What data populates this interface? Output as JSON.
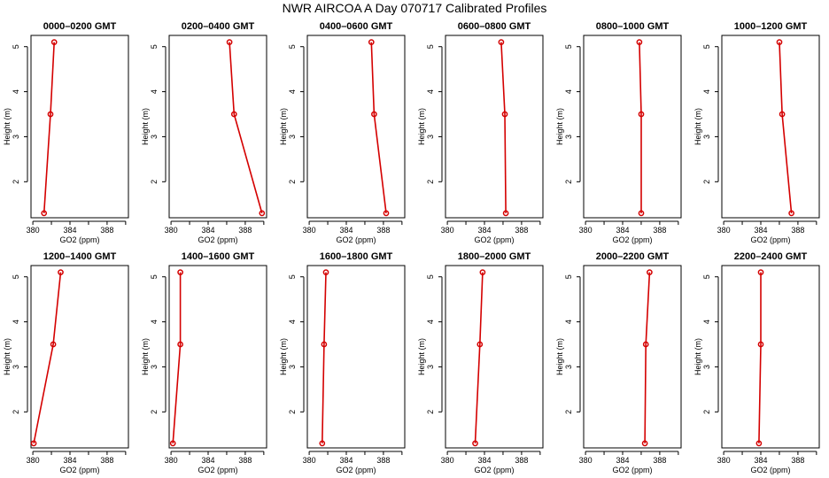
{
  "figure": {
    "title": "NWR AIRCOA A  Day 070717  Calibrated Profiles"
  },
  "chart_data": {
    "type": "line",
    "title": "NWR AIRCOA A  Day 070717  Calibrated Profiles",
    "xlabel": "GO2 (ppm)",
    "ylabel": "Height (m)",
    "xlim": [
      379.8,
      390.3
    ],
    "ylim": [
      1.2,
      5.25
    ],
    "x_ticks": [
      380,
      384,
      388
    ],
    "y_ticks": [
      2,
      3,
      4,
      5
    ],
    "colors": {
      "line": "#d40000",
      "point": "#d40000"
    },
    "heights": [
      1.3,
      3.5,
      5.1
    ],
    "panels": [
      {
        "title": "0000–0200 GMT",
        "values": [
          381.2,
          381.9,
          382.3
        ]
      },
      {
        "title": "0200–0400 GMT",
        "values": [
          389.8,
          386.8,
          386.3
        ]
      },
      {
        "title": "0400–0600 GMT",
        "values": [
          388.3,
          387.0,
          386.7
        ]
      },
      {
        "title": "0600–0800 GMT",
        "values": [
          386.3,
          386.2,
          385.8
        ]
      },
      {
        "title": "0800–1000 GMT",
        "values": [
          386.0,
          386.0,
          385.8
        ]
      },
      {
        "title": "1000–1200 GMT",
        "values": [
          387.3,
          386.3,
          386.0
        ]
      },
      {
        "title": "1200–1400 GMT",
        "values": [
          380.1,
          382.2,
          383.0
        ]
      },
      {
        "title": "1400–1600 GMT",
        "values": [
          380.2,
          381.0,
          381.0
        ]
      },
      {
        "title": "1600–1800 GMT",
        "values": [
          381.4,
          381.6,
          381.8
        ]
      },
      {
        "title": "1800–2000 GMT",
        "values": [
          383.0,
          383.5,
          383.8
        ]
      },
      {
        "title": "2000–2200 GMT",
        "values": [
          386.4,
          386.5,
          386.9
        ]
      },
      {
        "title": "2200–2400 GMT",
        "values": [
          383.8,
          384.0,
          384.0
        ]
      }
    ]
  }
}
